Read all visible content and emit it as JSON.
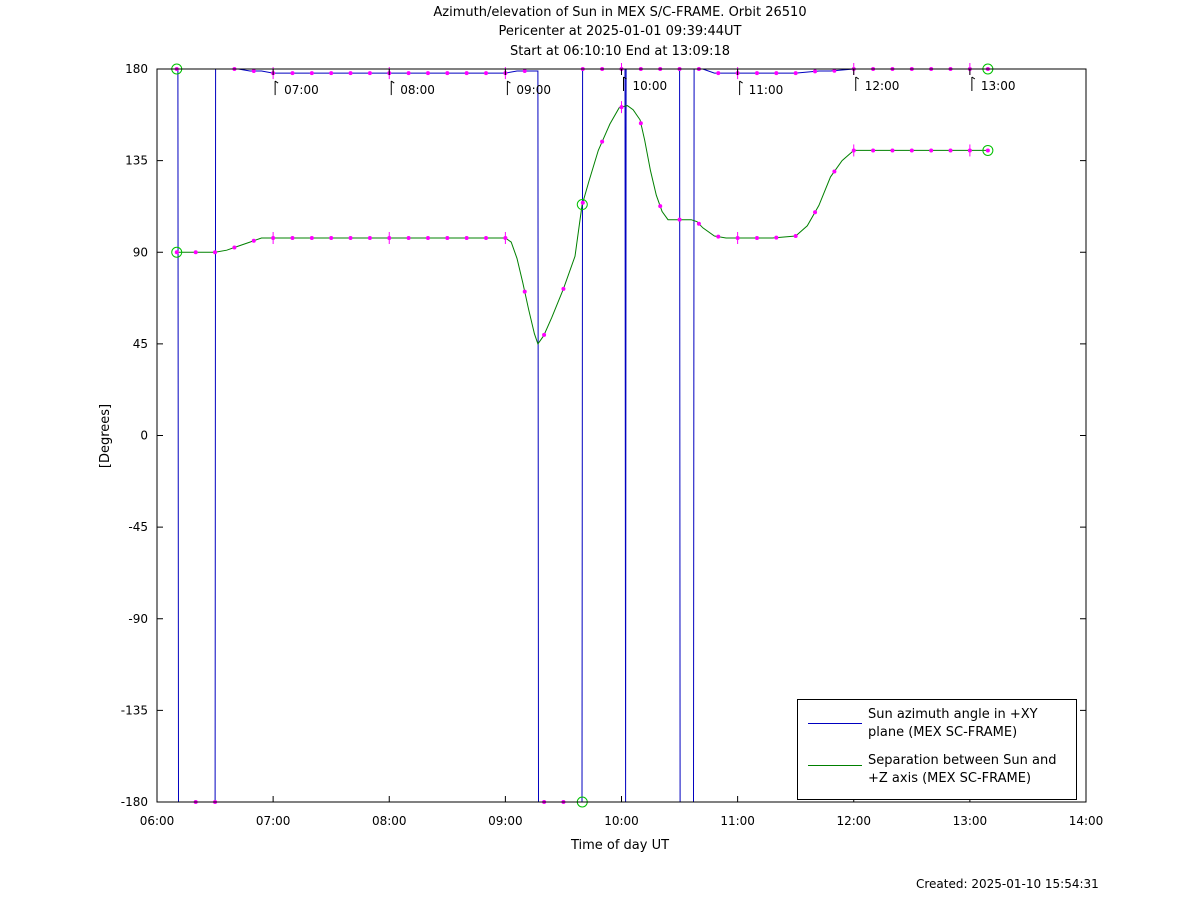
{
  "titles": {
    "line1": "Azimuth/elevation of Sun in MEX S/C-FRAME.  Orbit 26510",
    "line2": "Pericenter at 2025-01-01 09:39:44UT",
    "line3": "Start at 06:10:10 End at 13:09:18"
  },
  "footer": {
    "created": "Created: 2025-01-10 15:54:31"
  },
  "chart_data": {
    "type": "line",
    "xlabel": "Time of day UT",
    "ylabel": "[Degrees]",
    "xlim": [
      6.0,
      14.0
    ],
    "ylim": [
      -180,
      180
    ],
    "xticks": [
      6,
      7,
      8,
      9,
      10,
      11,
      12,
      13,
      14
    ],
    "xtick_labels": [
      "06:00",
      "07:00",
      "08:00",
      "09:00",
      "10:00",
      "11:00",
      "12:00",
      "13:00",
      "14:00"
    ],
    "yticks": [
      180,
      135,
      90,
      45,
      0,
      -45,
      -90,
      -135,
      -180
    ],
    "ytick_labels": [
      "180",
      "135",
      "90",
      "45",
      "0",
      "-45",
      "-90",
      "-135",
      "-180"
    ],
    "grid": false,
    "legend_position": "bottom-right",
    "hour_annotations": [
      {
        "x": 7,
        "label": "07:00"
      },
      {
        "x": 8,
        "label": "08:00"
      },
      {
        "x": 9,
        "label": "09:00"
      },
      {
        "x": 10,
        "label": "10:00"
      },
      {
        "x": 11,
        "label": "11:00"
      },
      {
        "x": 12,
        "label": "12:00"
      },
      {
        "x": 13,
        "label": "13:00"
      }
    ],
    "series": [
      {
        "name": "Sun azimuth angle in +XY plane (MEX SC-FRAME)",
        "color": "#0000c0",
        "x": [
          6.17,
          6.18,
          6.185,
          6.5,
          6.505,
          6.51,
          6.6,
          6.7,
          6.8,
          6.9,
          7.0,
          7.2,
          7.5,
          8.0,
          8.5,
          8.8,
          9.0,
          9.1,
          9.2,
          9.28,
          9.285,
          9.29,
          9.4,
          9.5,
          9.62,
          9.66,
          9.665,
          9.67,
          9.8,
          9.95,
          10.03,
          10.035,
          10.04,
          10.2,
          10.4,
          10.5,
          10.505,
          10.51,
          10.62,
          10.625,
          10.63,
          10.7,
          10.8,
          10.9,
          11.0,
          11.2,
          11.5,
          11.7,
          11.8,
          12.0,
          12.3,
          12.6,
          12.9,
          13.155
        ],
        "y": [
          180,
          180,
          -180,
          -180,
          180,
          180,
          180,
          180,
          179,
          179,
          178,
          178,
          178,
          178,
          178,
          178,
          178,
          179,
          179,
          179,
          -180,
          -180,
          -180,
          -180,
          -180,
          -180,
          180,
          180,
          180,
          180,
          180,
          -180,
          180,
          180,
          180,
          180,
          -180,
          -180,
          -180,
          180,
          180,
          180,
          178,
          178,
          178,
          178,
          178,
          179,
          179,
          180,
          180,
          180,
          180,
          180
        ]
      },
      {
        "name": "Separation between Sun and +Z axis (MEX SC-FRAME)",
        "color": "#008000",
        "x": [
          6.17,
          6.3,
          6.5,
          6.6,
          6.7,
          6.8,
          6.9,
          7.0,
          7.5,
          8.0,
          8.5,
          9.0,
          9.05,
          9.1,
          9.15,
          9.2,
          9.25,
          9.28,
          9.33,
          9.4,
          9.5,
          9.6,
          9.66,
          9.72,
          9.8,
          9.9,
          9.98,
          10.05,
          10.1,
          10.16,
          10.2,
          10.25,
          10.3,
          10.35,
          10.4,
          10.6,
          10.65,
          10.7,
          10.8,
          10.9,
          11.0,
          11.3,
          11.5,
          11.6,
          11.7,
          11.8,
          11.9,
          12.0,
          12.5,
          13.0,
          13.155
        ],
        "y": [
          90,
          90,
          90,
          91,
          93,
          95,
          97,
          97,
          97,
          97,
          97,
          97,
          95,
          87,
          75,
          62,
          50,
          45,
          49,
          58,
          72,
          88,
          113,
          125,
          140,
          153,
          161,
          162,
          160,
          155,
          145,
          130,
          118,
          110,
          106,
          106,
          105,
          102,
          98,
          97,
          97,
          97,
          98,
          103,
          113,
          127,
          135,
          140,
          140,
          140,
          140
        ]
      }
    ]
  },
  "legend": {
    "items": [
      {
        "label_line1": "Sun azimuth angle in +XY",
        "label_line2": "plane (MEX SC-FRAME)",
        "color": "#0000c0"
      },
      {
        "label_line1": "Separation between Sun and",
        "label_line2": "+Z axis (MEX SC-FRAME)",
        "color": "#008000"
      }
    ]
  }
}
